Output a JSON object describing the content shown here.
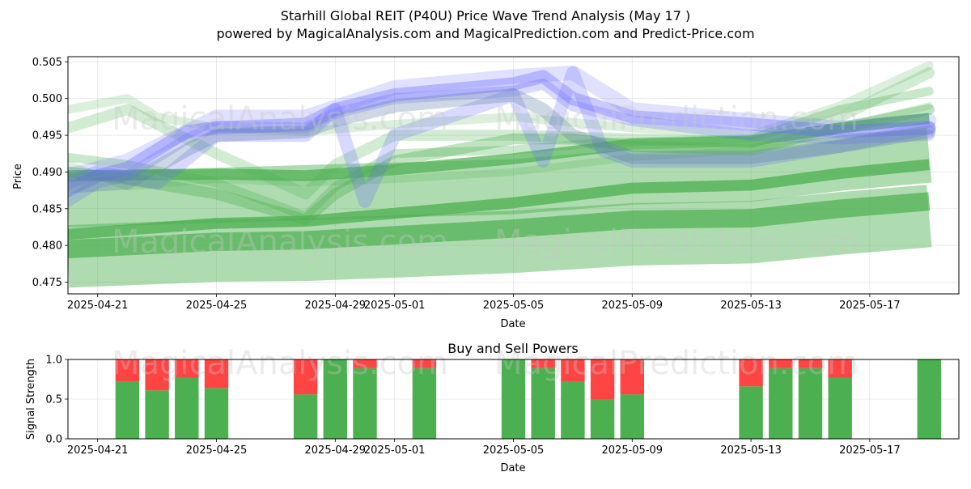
{
  "title": "Starhill Global REIT (P40U) Price Wave Trend Analysis (May 17 )",
  "subtitle": "powered by MagicalAnalysis.com and MagicalPrediction.com and Predict-Price.com",
  "watermarks": [
    "MagicalAnalysis.com",
    "MagicalPrediction.com"
  ],
  "colors": {
    "green": "#4caf50",
    "red": "#ff4444",
    "blue": "#6666ff",
    "slate": "#5d7fa6"
  },
  "chart_data": [
    {
      "type": "line",
      "name": "price-wave-trend",
      "xlabel": "Date",
      "ylabel": "Price",
      "x_ticks": [
        "2025-04-21",
        "2025-04-25",
        "2025-04-29",
        "2025-05-01",
        "2025-05-05",
        "2025-05-09",
        "2025-05-13",
        "2025-05-17"
      ],
      "y_ticks": [
        "0.475",
        "0.480",
        "0.485",
        "0.490",
        "0.495",
        "0.500",
        "0.505"
      ],
      "xlim": [
        "2025-04-20",
        "2025-05-20"
      ],
      "ylim": [
        0.4734,
        0.5057
      ],
      "grid": true,
      "series": [
        {
          "color": "#4caf50",
          "kind": "band",
          "x": [
            "2025-04-20",
            "2025-04-25",
            "2025-04-28",
            "2025-05-05",
            "2025-05-09",
            "2025-05-13",
            "2025-05-16",
            "2025-05-19"
          ],
          "values": [
            0.4785,
            0.4793,
            0.4794,
            0.4805,
            0.4815,
            0.4818,
            0.483,
            0.484
          ],
          "width": 0.0085,
          "opacity": 0.45
        },
        {
          "color": "#4caf50",
          "kind": "band",
          "x": [
            "2025-04-20",
            "2025-04-25",
            "2025-04-28",
            "2025-05-05",
            "2025-05-09",
            "2025-05-13",
            "2025-05-16",
            "2025-05-19"
          ],
          "values": [
            0.4795,
            0.4805,
            0.4807,
            0.4823,
            0.4835,
            0.4837,
            0.485,
            0.486
          ],
          "width": 0.0025,
          "opacity": 0.7
        },
        {
          "color": "#4caf50",
          "kind": "band",
          "x": [
            "2025-04-20",
            "2025-04-25",
            "2025-04-28",
            "2025-05-05",
            "2025-05-09",
            "2025-05-13",
            "2025-05-16",
            "2025-05-19"
          ],
          "values": [
            0.4862,
            0.4868,
            0.4872,
            0.488,
            0.4893,
            0.4897,
            0.4912,
            0.4923
          ],
          "width": 0.0075,
          "opacity": 0.45
        },
        {
          "color": "#4caf50",
          "kind": "band",
          "x": [
            "2025-04-20",
            "2025-04-25",
            "2025-04-28",
            "2025-05-05",
            "2025-05-09",
            "2025-05-13",
            "2025-05-16",
            "2025-05-19"
          ],
          "values": [
            0.4815,
            0.483,
            0.4833,
            0.4858,
            0.4878,
            0.4882,
            0.4898,
            0.491
          ],
          "width": 0.0015,
          "opacity": 0.75
        },
        {
          "color": "#4caf50",
          "kind": "band",
          "x": [
            "2025-04-20",
            "2025-04-25",
            "2025-04-28",
            "2025-05-01",
            "2025-05-05",
            "2025-05-09",
            "2025-05-13",
            "2025-05-16",
            "2025-05-19"
          ],
          "values": [
            0.4895,
            0.4897,
            0.4895,
            0.4903,
            0.4918,
            0.4938,
            0.4942,
            0.496,
            0.4973
          ],
          "width": 0.0015,
          "opacity": 0.7
        },
        {
          "color": "#4caf50",
          "kind": "line",
          "x": [
            "2025-04-20",
            "2025-04-22",
            "2025-04-25",
            "2025-04-28",
            "2025-04-29",
            "2025-05-01",
            "2025-05-05",
            "2025-05-07",
            "2025-05-09",
            "2025-05-13",
            "2025-05-16",
            "2025-05-19"
          ],
          "values": [
            0.49,
            0.489,
            0.487,
            0.4835,
            0.487,
            0.4915,
            0.4945,
            0.4945,
            0.4935,
            0.493,
            0.496,
            0.4985
          ],
          "width": 0.0015,
          "opacity": 0.35
        },
        {
          "color": "#4caf50",
          "kind": "line",
          "x": [
            "2025-04-20",
            "2025-04-22",
            "2025-04-25",
            "2025-04-28",
            "2025-04-29",
            "2025-05-01",
            "2025-05-05",
            "2025-05-08",
            "2025-05-13",
            "2025-05-16",
            "2025-05-19"
          ],
          "values": [
            0.492,
            0.491,
            0.4885,
            0.484,
            0.488,
            0.4925,
            0.493,
            0.494,
            0.4945,
            0.4985,
            0.501
          ],
          "width": 0.0012,
          "opacity": 0.3
        },
        {
          "color": "#4caf50",
          "kind": "line",
          "x": [
            "2025-04-20",
            "2025-04-22",
            "2025-04-25",
            "2025-04-28",
            "2025-04-29",
            "2025-05-01",
            "2025-05-05",
            "2025-05-09",
            "2025-05-13",
            "2025-05-16",
            "2025-05-19"
          ],
          "values": [
            0.496,
            0.4985,
            0.4925,
            0.487,
            0.491,
            0.495,
            0.495,
            0.4945,
            0.494,
            0.4975,
            0.5035
          ],
          "width": 0.0015,
          "opacity": 0.25
        },
        {
          "color": "#4caf50",
          "kind": "line",
          "x": [
            "2025-04-20",
            "2025-04-22",
            "2025-04-23",
            "2025-04-25",
            "2025-04-28",
            "2025-05-01",
            "2025-05-05",
            "2025-05-09",
            "2025-05-13",
            "2025-05-16",
            "2025-05-19"
          ],
          "values": [
            0.4985,
            0.5,
            0.4975,
            0.496,
            0.4955,
            0.4965,
            0.4975,
            0.496,
            0.495,
            0.499,
            0.5045
          ],
          "width": 0.0012,
          "opacity": 0.2
        },
        {
          "color": "#4caf50",
          "kind": "line",
          "x": [
            "2025-04-20",
            "2025-04-22",
            "2025-04-25",
            "2025-04-28",
            "2025-05-01",
            "2025-05-05",
            "2025-05-09",
            "2025-05-13",
            "2025-05-16",
            "2025-05-19"
          ],
          "values": [
            0.491,
            0.488,
            0.489,
            0.4885,
            0.489,
            0.49,
            0.492,
            0.493,
            0.496,
            0.499
          ],
          "width": 0.001,
          "opacity": 0.2
        },
        {
          "color": "#6666ff",
          "kind": "line",
          "x": [
            "2025-04-20",
            "2025-04-21",
            "2025-04-22",
            "2025-04-24",
            "2025-04-25",
            "2025-04-28",
            "2025-04-29",
            "2025-05-01",
            "2025-05-05",
            "2025-05-06",
            "2025-05-07",
            "2025-05-09",
            "2025-05-13",
            "2025-05-16",
            "2025-05-19"
          ],
          "values": [
            0.4875,
            0.4895,
            0.4905,
            0.4955,
            0.496,
            0.4965,
            0.4985,
            0.5005,
            0.502,
            0.503,
            0.5,
            0.4975,
            0.4965,
            0.4955,
            0.496
          ],
          "width": 0.0018,
          "opacity": 0.35
        },
        {
          "color": "#6666ff",
          "kind": "line",
          "x": [
            "2025-04-20",
            "2025-04-21",
            "2025-04-22",
            "2025-04-24",
            "2025-04-25",
            "2025-04-28",
            "2025-04-29",
            "2025-05-01",
            "2025-05-05",
            "2025-05-06",
            "2025-05-07",
            "2025-05-09",
            "2025-05-13",
            "2025-05-16",
            "2025-05-19"
          ],
          "values": [
            0.486,
            0.4885,
            0.4895,
            0.4945,
            0.4962,
            0.496,
            0.498,
            0.5,
            0.501,
            0.502,
            0.499,
            0.497,
            0.495,
            0.4945,
            0.495
          ],
          "width": 0.0015,
          "opacity": 0.25
        },
        {
          "color": "#6666ff",
          "kind": "line",
          "x": [
            "2025-04-20",
            "2025-04-22",
            "2025-04-25",
            "2025-04-28",
            "2025-05-01",
            "2025-05-05",
            "2025-05-07",
            "2025-05-09",
            "2025-05-13",
            "2025-05-16",
            "2025-05-19"
          ],
          "values": [
            0.4895,
            0.4915,
            0.4975,
            0.4975,
            0.5015,
            0.503,
            0.5035,
            0.4985,
            0.497,
            0.496,
            0.497
          ],
          "width": 0.002,
          "opacity": 0.2
        },
        {
          "color": "#6666ff",
          "kind": "line",
          "x": [
            "2025-04-20",
            "2025-04-21",
            "2025-04-23",
            "2025-04-25",
            "2025-04-28",
            "2025-04-29",
            "2025-04-30",
            "2025-05-01",
            "2025-05-05",
            "2025-05-06",
            "2025-05-07",
            "2025-05-08",
            "2025-05-09",
            "2025-05-13",
            "2025-05-16",
            "2025-05-19"
          ],
          "values": [
            0.4885,
            0.49,
            0.4885,
            0.495,
            0.495,
            0.4985,
            0.486,
            0.495,
            0.5005,
            0.4915,
            0.5035,
            0.493,
            0.4915,
            0.4915,
            0.4935,
            0.496
          ],
          "width": 0.0018,
          "opacity": 0.25
        },
        {
          "color": "#5d7fa6",
          "kind": "line",
          "x": [
            "2025-04-20",
            "2025-04-22",
            "2025-04-24",
            "2025-04-25",
            "2025-04-28",
            "2025-04-29",
            "2025-05-01",
            "2025-05-05",
            "2025-05-06",
            "2025-05-07",
            "2025-05-09",
            "2025-05-13",
            "2025-05-16",
            "2025-05-19"
          ],
          "values": [
            0.488,
            0.4885,
            0.493,
            0.495,
            0.4955,
            0.497,
            0.499,
            0.5005,
            0.4985,
            0.495,
            0.492,
            0.492,
            0.4935,
            0.4955
          ],
          "width": 0.0018,
          "opacity": 0.3
        }
      ]
    },
    {
      "type": "bar",
      "name": "buy-sell-powers",
      "title": "Buy and Sell Powers",
      "xlabel": "Date",
      "ylabel": "Signal Strength",
      "x_ticks": [
        "2025-04-21",
        "2025-04-25",
        "2025-04-29",
        "2025-05-01",
        "2025-05-05",
        "2025-05-09",
        "2025-05-13",
        "2025-05-17"
      ],
      "y_ticks": [
        "0.0",
        "0.5",
        "1.0"
      ],
      "ylim": [
        0,
        1
      ],
      "xlim": [
        "2025-04-20",
        "2025-05-20"
      ],
      "grid": true,
      "categories": [
        "2025-04-22",
        "2025-04-23",
        "2025-04-24",
        "2025-04-25",
        "2025-04-28",
        "2025-04-29",
        "2025-04-30",
        "2025-05-02",
        "2025-05-05",
        "2025-05-06",
        "2025-05-07",
        "2025-05-08",
        "2025-05-09",
        "2025-05-13",
        "2025-05-14",
        "2025-05-15",
        "2025-05-16",
        "2025-05-19"
      ],
      "series": [
        {
          "color": "#4caf50",
          "values": [
            0.72,
            0.61,
            0.77,
            0.64,
            0.56,
            1.0,
            0.89,
            0.89,
            1.0,
            0.89,
            0.72,
            0.5,
            0.56,
            0.66,
            0.89,
            0.89,
            0.77,
            1.0
          ]
        },
        {
          "color": "#ff4444",
          "values": [
            0.28,
            0.39,
            0.23,
            0.36,
            0.44,
            0.0,
            0.11,
            0.11,
            0.0,
            0.11,
            0.28,
            0.5,
            0.44,
            0.34,
            0.11,
            0.11,
            0.23,
            0.0
          ]
        }
      ]
    }
  ]
}
